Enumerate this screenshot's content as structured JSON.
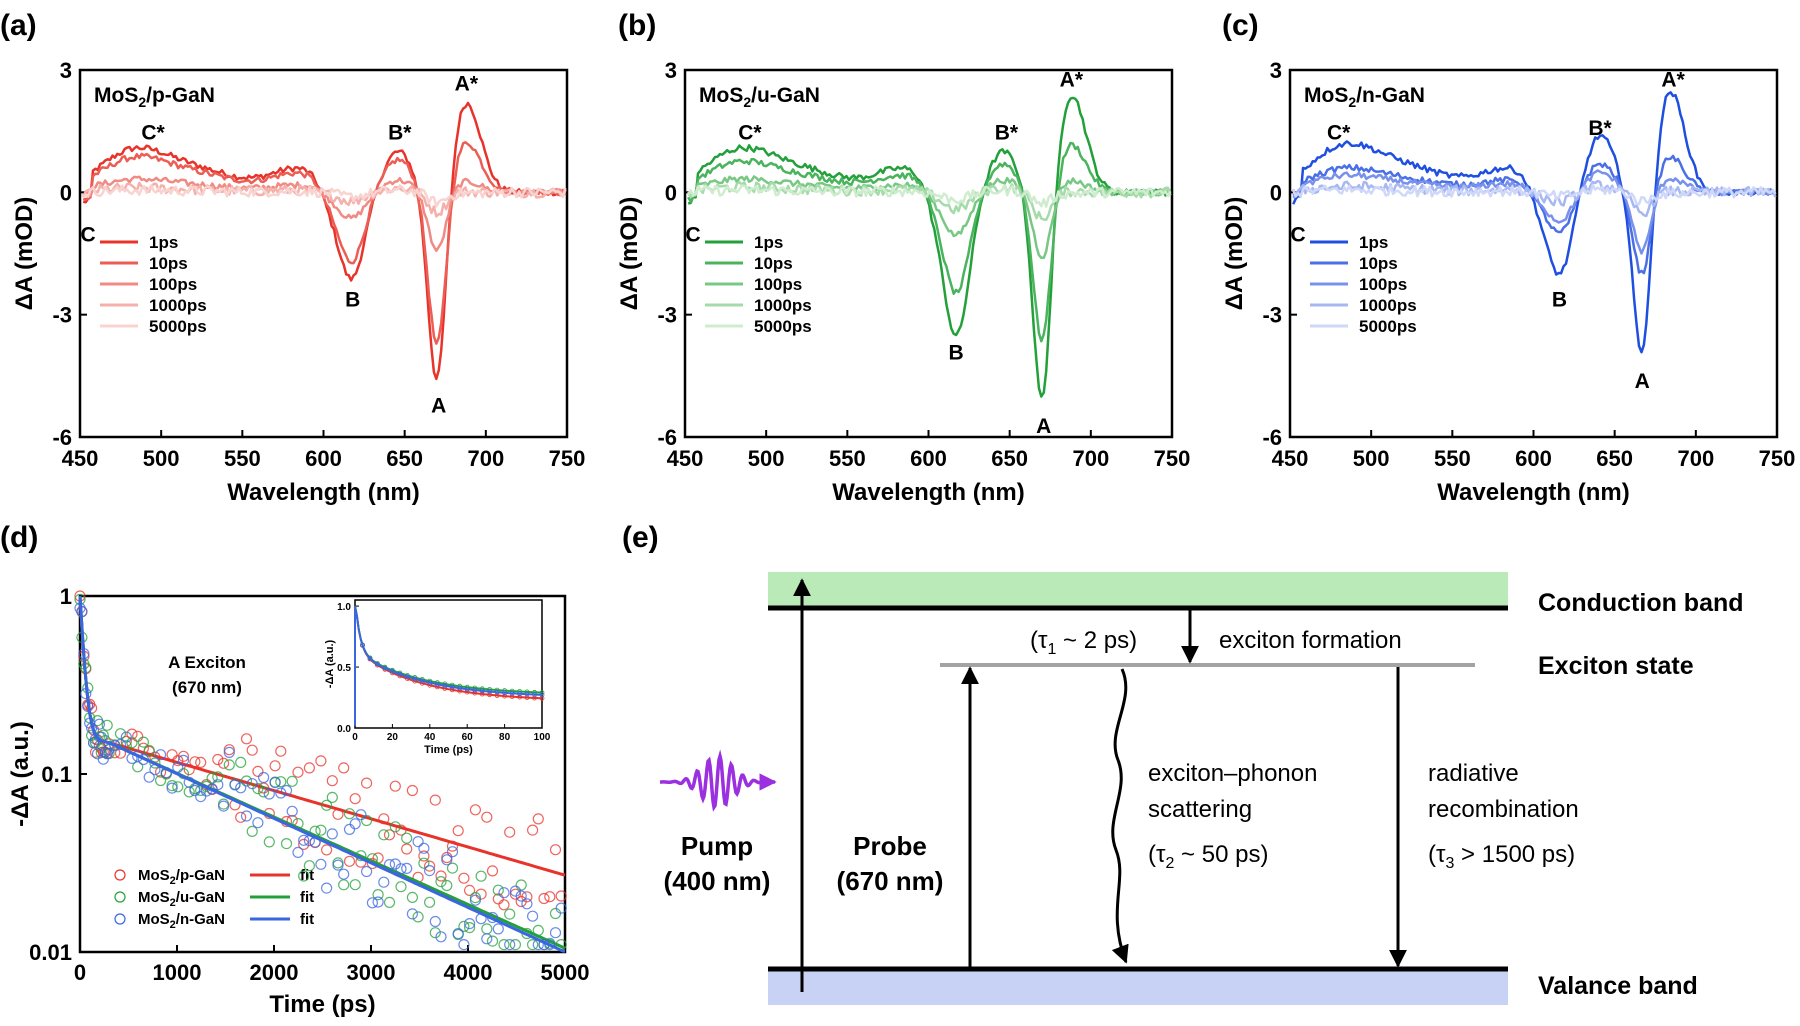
{
  "panel_letters": [
    "(a)",
    "(b)",
    "(c)",
    "(d)",
    "(e)"
  ],
  "chart_data": [
    {
      "type": "line",
      "panel": "(a)",
      "title": "MoS2/p-GaN",
      "xlabel": "Wavelength (nm)",
      "ylabel": "ΔA (mOD)",
      "xlim": [
        450,
        750
      ],
      "ylim": [
        -6,
        3
      ],
      "xticks": [
        450,
        500,
        550,
        600,
        650,
        700,
        750
      ],
      "yticks": [
        3,
        0,
        -3,
        -6
      ],
      "legend": [
        "1ps",
        "10ps",
        "100ps",
        "1000ps",
        "5000ps"
      ],
      "colors": [
        "#e8332a",
        "#ec5e55",
        "#f08a83",
        "#f4b0ab",
        "#f8d3d0"
      ],
      "annotations": [
        {
          "label": "C*",
          "x": 495,
          "y": 1.3
        },
        {
          "label": "B*",
          "x": 647,
          "y": 1.3
        },
        {
          "label": "A*",
          "x": 688,
          "y": 2.5
        },
        {
          "label": "C",
          "x": 455,
          "y": -1.2
        },
        {
          "label": "B",
          "x": 618,
          "y": -2.8
        },
        {
          "label": "A",
          "x": 671,
          "y": -5.4
        }
      ],
      "features": {
        "c": 1.0,
        "b": -2.2,
        "bStar": 1.0,
        "a": -4.9,
        "aStar": 2.2
      },
      "scales": [
        1.0,
        0.8,
        0.3,
        0.1,
        0.05
      ]
    },
    {
      "type": "line",
      "panel": "(b)",
      "title": "MoS2/u-GaN",
      "xlabel": "Wavelength (nm)",
      "ylabel": "ΔA (mOD)",
      "xlim": [
        450,
        750
      ],
      "ylim": [
        -6,
        3
      ],
      "xticks": [
        450,
        500,
        550,
        600,
        650,
        700,
        750
      ],
      "yticks": [
        3,
        0,
        -3,
        -6
      ],
      "legend": [
        "1ps",
        "10ps",
        "100ps",
        "1000ps",
        "5000ps"
      ],
      "colors": [
        "#23a03a",
        "#4ab45c",
        "#78c884",
        "#a5dba9",
        "#cfeccf"
      ],
      "annotations": [
        {
          "label": "C*",
          "x": 490,
          "y": 1.3
        },
        {
          "label": "B*",
          "x": 648,
          "y": 1.3
        },
        {
          "label": "A*",
          "x": 688,
          "y": 2.6
        },
        {
          "label": "C",
          "x": 455,
          "y": -1.2
        },
        {
          "label": "B",
          "x": 617,
          "y": -4.1
        },
        {
          "label": "A",
          "x": 671,
          "y": -5.9
        }
      ],
      "features": {
        "c": 1.0,
        "b": -3.6,
        "bStar": 1.0,
        "a": -5.4,
        "aStar": 2.4
      },
      "scales": [
        1.0,
        0.7,
        0.3,
        0.12,
        0.05
      ]
    },
    {
      "type": "line",
      "panel": "(c)",
      "title": "MoS2/n-GaN",
      "xlabel": "Wavelength (nm)",
      "ylabel": "ΔA (mOD)",
      "xlim": [
        450,
        750
      ],
      "ylim": [
        -6,
        3
      ],
      "xticks": [
        450,
        500,
        550,
        600,
        650,
        700,
        750
      ],
      "yticks": [
        3,
        0,
        -3,
        -6
      ],
      "legend": [
        "1ps",
        "10ps",
        "100ps",
        "1000ps",
        "5000ps"
      ],
      "colors": [
        "#1f4fe0",
        "#4a6fe6",
        "#7891ec",
        "#a6b7f2",
        "#cfd8f8"
      ],
      "annotations": [
        {
          "label": "C*",
          "x": 480,
          "y": 1.3
        },
        {
          "label": "B*",
          "x": 641,
          "y": 1.4
        },
        {
          "label": "A*",
          "x": 686,
          "y": 2.6
        },
        {
          "label": "C",
          "x": 455,
          "y": -1.2
        },
        {
          "label": "B",
          "x": 616,
          "y": -2.8
        },
        {
          "label": "A",
          "x": 667,
          "y": -4.8
        }
      ],
      "features": {
        "c": 1.1,
        "b": -2.1,
        "bStar": 1.4,
        "a": -4.3,
        "aStar": 2.5
      },
      "scales": [
        1.0,
        0.5,
        0.35,
        0.12,
        0.05
      ]
    },
    {
      "type": "scatter",
      "panel": "(d)",
      "title": "A Exciton (670 nm)",
      "xlabel": "Time (ps)",
      "ylabel": "-ΔA (a.u.)",
      "xlim": [
        0,
        5000
      ],
      "ylim": [
        0.01,
        1
      ],
      "yscale": "log",
      "xticks": [
        0,
        1000,
        2000,
        3000,
        4000,
        5000
      ],
      "yticks": [
        1,
        0.1,
        0.01
      ],
      "series": [
        {
          "name": "MoS2/p-GaN",
          "color": "#e8332a",
          "fit_end": 0.027
        },
        {
          "name": "MoS2/u-GaN",
          "color": "#23a03a",
          "fit_end": 0.0105
        },
        {
          "name": "MoS2/n-GaN",
          "color": "#3a66e0",
          "fit_end": 0.01
        }
      ],
      "fit_label": "fit",
      "inset": {
        "xlabel": "Time (ps)",
        "ylabel": "-ΔA (a.u.)",
        "xlim": [
          0,
          100
        ],
        "ylim": [
          0,
          1.05
        ],
        "xticks": [
          0,
          20,
          40,
          60,
          80,
          100
        ],
        "yticks": [
          0.0,
          0.5,
          1.0
        ],
        "end_values": [
          0.22,
          0.27,
          0.25
        ]
      }
    }
  ],
  "diagram": {
    "conduction_band": "Conduction band",
    "exciton_state": "Exciton state",
    "valence_band": "Valance band",
    "pump_label": "Pump",
    "pump_wavelength": "(400 nm)",
    "probe_label": "Probe",
    "probe_wavelength": "(670 nm)",
    "tau1": "(τ",
    "tau1_sub": "1",
    "tau1_rest": " ~ 2 ps)",
    "exciton_formation": "exciton  formation",
    "phonon_line1": "exciton–phonon",
    "phonon_line2": "scattering",
    "tau2": "(τ",
    "tau2_sub": "2",
    "tau2_rest": " ~ 50 ps)",
    "radiative_line1": "radiative",
    "radiative_line2": "recombination",
    "tau3": "(τ",
    "tau3_sub": "3",
    "tau3_rest": " > 1500 ps)",
    "band_colors": {
      "conduction": "#b9eab8",
      "valence": "#c7d2f5",
      "pump": "#9b30e0"
    }
  }
}
